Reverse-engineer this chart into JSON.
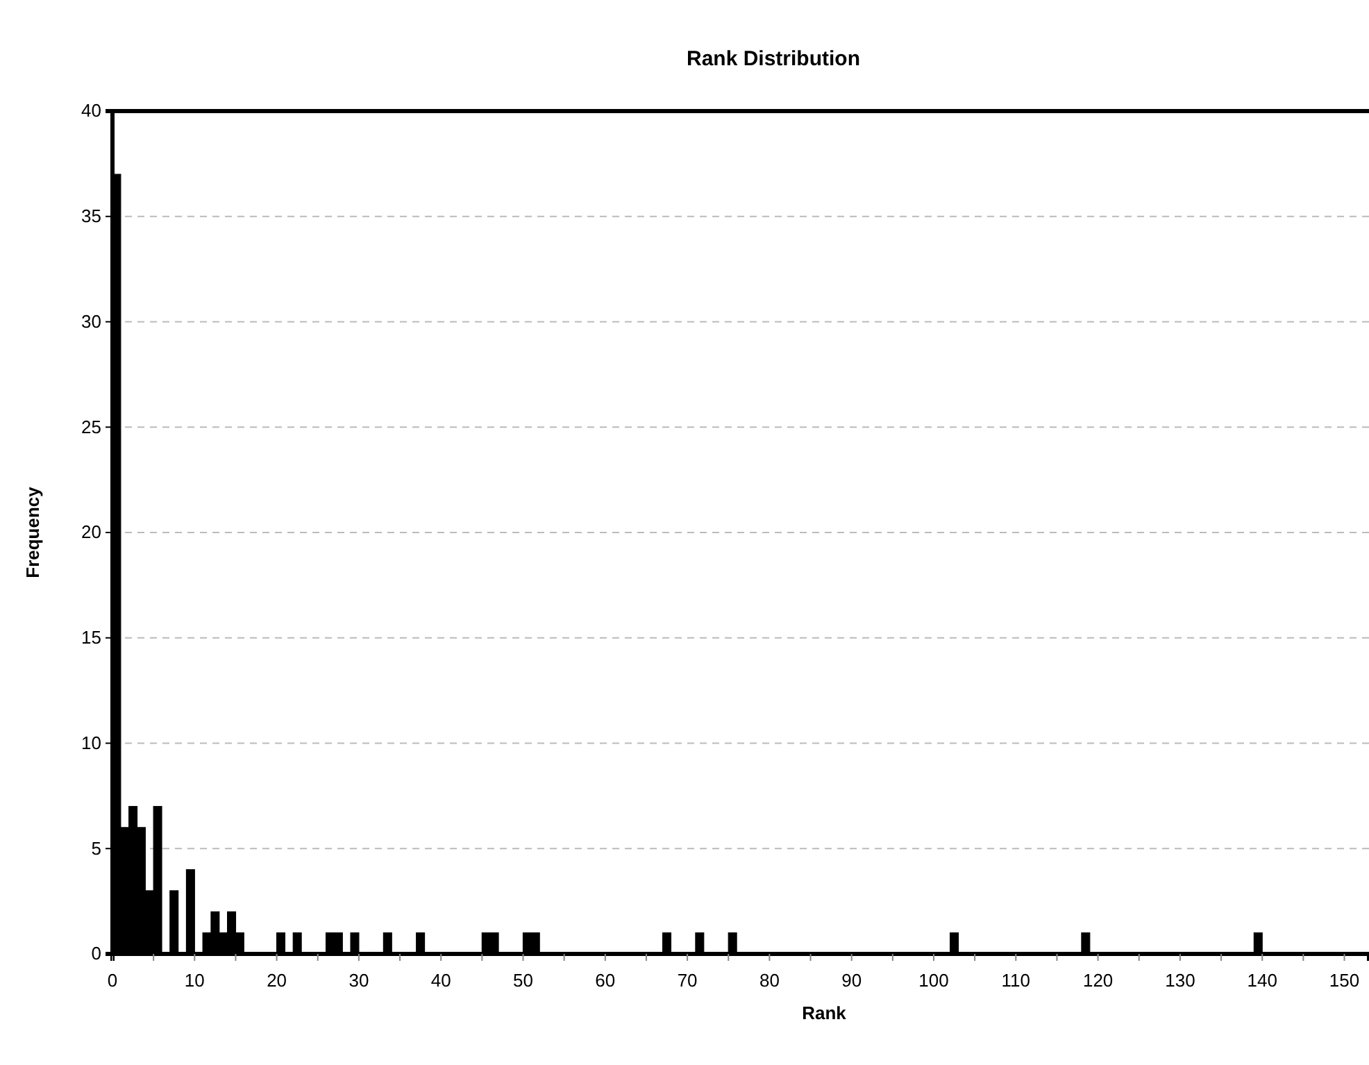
{
  "chart_data": {
    "type": "histogram",
    "title": "Rank Distribution",
    "xlabel": "Rank",
    "ylabel": "Frequency",
    "bins": [
      0,
      1,
      2,
      3,
      4,
      5,
      6,
      7,
      8,
      9,
      10,
      11,
      12,
      13,
      14,
      15,
      16,
      17,
      18,
      19,
      20,
      21,
      22,
      23,
      24,
      25,
      26,
      27,
      28,
      29,
      30,
      31,
      32,
      33,
      34,
      35,
      36,
      37,
      38,
      39,
      40,
      41,
      42,
      43,
      44,
      45,
      46,
      47,
      48,
      49,
      50,
      51,
      52,
      53,
      54,
      55,
      56,
      57,
      58,
      59,
      60,
      61,
      62,
      63,
      64,
      65,
      66,
      67,
      68,
      69,
      70,
      71,
      72,
      73,
      74,
      75,
      76,
      77,
      78,
      79,
      80,
      81,
      82,
      83,
      84,
      85,
      86,
      87,
      88,
      89,
      90,
      91,
      92,
      93,
      94,
      95,
      96,
      97,
      98,
      99,
      100,
      101,
      102,
      103,
      104,
      105,
      106,
      107,
      108,
      109,
      110,
      111,
      112,
      113,
      114,
      115,
      116,
      117,
      118,
      119,
      120,
      121,
      122,
      123,
      124,
      125,
      126,
      127,
      128,
      129,
      130,
      131,
      132,
      133,
      134,
      135,
      136,
      137,
      138,
      139,
      140,
      141,
      142,
      143,
      144,
      145,
      146,
      147,
      148,
      149,
      150
    ],
    "values": [
      37,
      6,
      7,
      6,
      3,
      7,
      0,
      3,
      0,
      4,
      0,
      1,
      2,
      1,
      2,
      1,
      0,
      0,
      0,
      0,
      1,
      0,
      1,
      0,
      0,
      0,
      1,
      1,
      0,
      1,
      0,
      0,
      0,
      1,
      0,
      0,
      0,
      1,
      0,
      0,
      0,
      0,
      0,
      0,
      0,
      1,
      1,
      0,
      0,
      0,
      1,
      1,
      0,
      0,
      0,
      0,
      0,
      0,
      0,
      0,
      0,
      0,
      0,
      0,
      0,
      0,
      0,
      1,
      0,
      0,
      0,
      1,
      0,
      0,
      0,
      1,
      0,
      0,
      0,
      0,
      0,
      0,
      0,
      0,
      0,
      0,
      0,
      0,
      0,
      0,
      0,
      0,
      0,
      0,
      0,
      0,
      0,
      0,
      0,
      0,
      0,
      0,
      1,
      0,
      0,
      0,
      0,
      0,
      0,
      0,
      0,
      0,
      0,
      0,
      0,
      0,
      0,
      0,
      1,
      0,
      0,
      0,
      0,
      0,
      0,
      0,
      0,
      0,
      0,
      0,
      0,
      0,
      0,
      0,
      0,
      0,
      0,
      0,
      0,
      1,
      0,
      0,
      0,
      0,
      0,
      0,
      0,
      0,
      0,
      0
    ],
    "color": "#000000",
    "xlim": [
      0,
      153
    ],
    "ylim": [
      0,
      40
    ],
    "xticks": [
      0,
      {
        "value": 5,
        "label": null
      },
      10,
      {
        "value": 15,
        "label": null
      },
      20,
      {
        "value": 25,
        "label": null
      },
      30,
      {
        "value": 35,
        "label": null
      },
      40,
      {
        "value": 45,
        "label": null
      },
      50,
      {
        "value": 55,
        "label": null
      },
      60,
      {
        "value": 65,
        "label": null
      },
      70,
      {
        "value": 75,
        "label": null
      },
      80,
      {
        "value": 85,
        "label": null
      },
      90,
      {
        "value": 95,
        "label": null
      },
      100,
      {
        "value": 105,
        "label": null
      },
      110,
      {
        "value": 115,
        "label": null
      },
      120,
      {
        "value": 125,
        "label": null
      },
      130,
      {
        "value": 135,
        "label": null
      },
      140,
      {
        "value": 145,
        "label": null
      },
      150
    ],
    "yticks": [
      0,
      5,
      10,
      15,
      20,
      25,
      30,
      35,
      40
    ],
    "grid": "y"
  }
}
